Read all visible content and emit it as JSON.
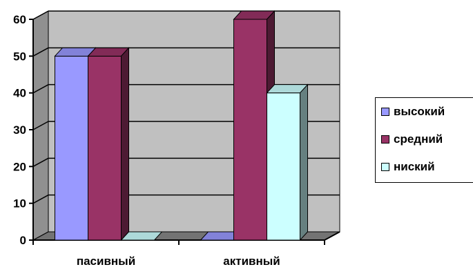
{
  "chart_data": {
    "type": "bar",
    "categories": [
      "пасивный",
      "активный"
    ],
    "series": [
      {
        "name": "высокий",
        "values": [
          50,
          0
        ],
        "color": "#9999ff"
      },
      {
        "name": "средний",
        "values": [
          50,
          60
        ],
        "color": "#993366"
      },
      {
        "name": "ниский",
        "values": [
          0,
          40
        ],
        "color": "#ccffff"
      }
    ],
    "ylim": [
      0,
      60
    ],
    "yticks": [
      "0",
      "10",
      "20",
      "30",
      "40",
      "50",
      "60"
    ],
    "grid": true,
    "three_d": true,
    "legend_position": "right",
    "plot_background": "#c0c0c0"
  }
}
